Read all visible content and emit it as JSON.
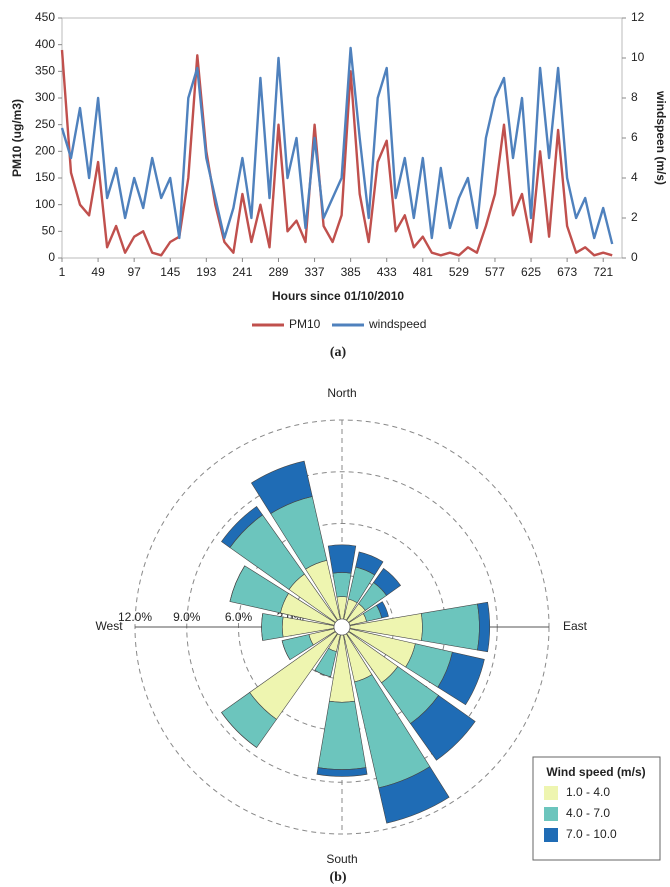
{
  "chart_data": [
    {
      "type": "line",
      "caption": "(a)",
      "x_label": "Hours since 01/10/2010",
      "y_label": "PM10 (ug/m3)",
      "y2_label": "windspeen (m/s)",
      "x": [
        1,
        13,
        25,
        37,
        49,
        61,
        73,
        85,
        97,
        109,
        121,
        133,
        145,
        157,
        169,
        181,
        193,
        205,
        217,
        229,
        241,
        253,
        265,
        277,
        289,
        301,
        313,
        325,
        337,
        349,
        361,
        373,
        385,
        397,
        409,
        421,
        433,
        445,
        457,
        469,
        481,
        493,
        505,
        517,
        529,
        541,
        553,
        565,
        577,
        589,
        601,
        613,
        625,
        637,
        649,
        661,
        673,
        685,
        697,
        709,
        721,
        733
      ],
      "series": [
        {
          "name": "PM10",
          "color": "#c0504d",
          "axis": "y",
          "values": [
            390,
            160,
            100,
            80,
            180,
            20,
            60,
            10,
            40,
            50,
            10,
            5,
            30,
            40,
            150,
            380,
            200,
            100,
            30,
            10,
            120,
            30,
            100,
            20,
            250,
            50,
            70,
            30,
            250,
            60,
            30,
            80,
            350,
            120,
            30,
            180,
            220,
            50,
            80,
            20,
            40,
            10,
            5,
            10,
            5,
            20,
            10,
            60,
            120,
            250,
            80,
            120,
            30,
            200,
            40,
            240,
            60,
            10,
            20,
            5,
            10,
            5
          ]
        },
        {
          "name": "windspeed",
          "color": "#4f81bd",
          "axis": "y2",
          "values": [
            6.5,
            5,
            7.5,
            4,
            8,
            3,
            4.5,
            2,
            4,
            2.5,
            5,
            3,
            4,
            1,
            8,
            9.5,
            5,
            3,
            1,
            2.5,
            5,
            2,
            9,
            3,
            10,
            4,
            6,
            1.5,
            6,
            2,
            3,
            4,
            10.5,
            6,
            2,
            8,
            9.5,
            3,
            5,
            2,
            5,
            1,
            4.5,
            1.5,
            3,
            4,
            1.5,
            6,
            8,
            9,
            5,
            8,
            2,
            9.5,
            5,
            9.5,
            4,
            2,
            3,
            1,
            2.5,
            0.7
          ]
        }
      ],
      "xlim": [
        1,
        746
      ],
      "xticks": [
        1,
        49,
        97,
        145,
        193,
        241,
        289,
        337,
        385,
        433,
        481,
        529,
        577,
        625,
        673,
        721
      ],
      "ylim": [
        0,
        450
      ],
      "yticks": [
        0,
        50,
        100,
        150,
        200,
        250,
        300,
        350,
        400,
        450
      ],
      "y2lim": [
        0,
        12
      ],
      "y2ticks": [
        0,
        2,
        4,
        6,
        8,
        10,
        12
      ],
      "legend": "bottom"
    },
    {
      "type": "windrose",
      "caption": "(b)",
      "categories": [
        "North",
        null,
        null,
        null,
        "East",
        null,
        null,
        null,
        "South",
        null,
        null,
        null,
        "West",
        null,
        null,
        null
      ],
      "series": [
        {
          "name": "1.0 - 4.0",
          "color": "#eef5b0",
          "values": [
            1.3,
            1.2,
            1.2,
            1.0,
            4.2,
            3.9,
            3.5,
            2.8,
            3.9,
            1.0,
            6.1,
            1.5,
            3.0,
            3.2,
            3.3,
            3.5
          ]
        },
        {
          "name": "4.0 - 7.0",
          "color": "#6cc5bd",
          "values": [
            1.4,
            1.9,
            1.5,
            0.9,
            3.3,
            2.2,
            2.9,
            6.3,
            3.9,
            1.5,
            2.0,
            1.6,
            1.2,
            3.0,
            4.2,
            3.8
          ]
        },
        {
          "name": "7.0 - 10.0",
          "color": "#1f6cb5",
          "values": [
            1.6,
            0.9,
            1.0,
            0.4,
            0.6,
            1.9,
            2.6,
            2.1,
            0.4,
            0,
            0,
            0,
            0,
            0,
            0.6,
            2.1
          ]
        }
      ],
      "rlim": [
        0,
        12
      ],
      "rticks": [
        {
          "value": 3,
          "label": "3.0%"
        },
        {
          "value": 6,
          "label": "6.0%"
        },
        {
          "value": 9,
          "label": "9.0%"
        },
        {
          "value": 12,
          "label": "12.0%"
        }
      ],
      "legend_title": "Wind speed (m/s)",
      "legend": "bottom-right"
    }
  ]
}
